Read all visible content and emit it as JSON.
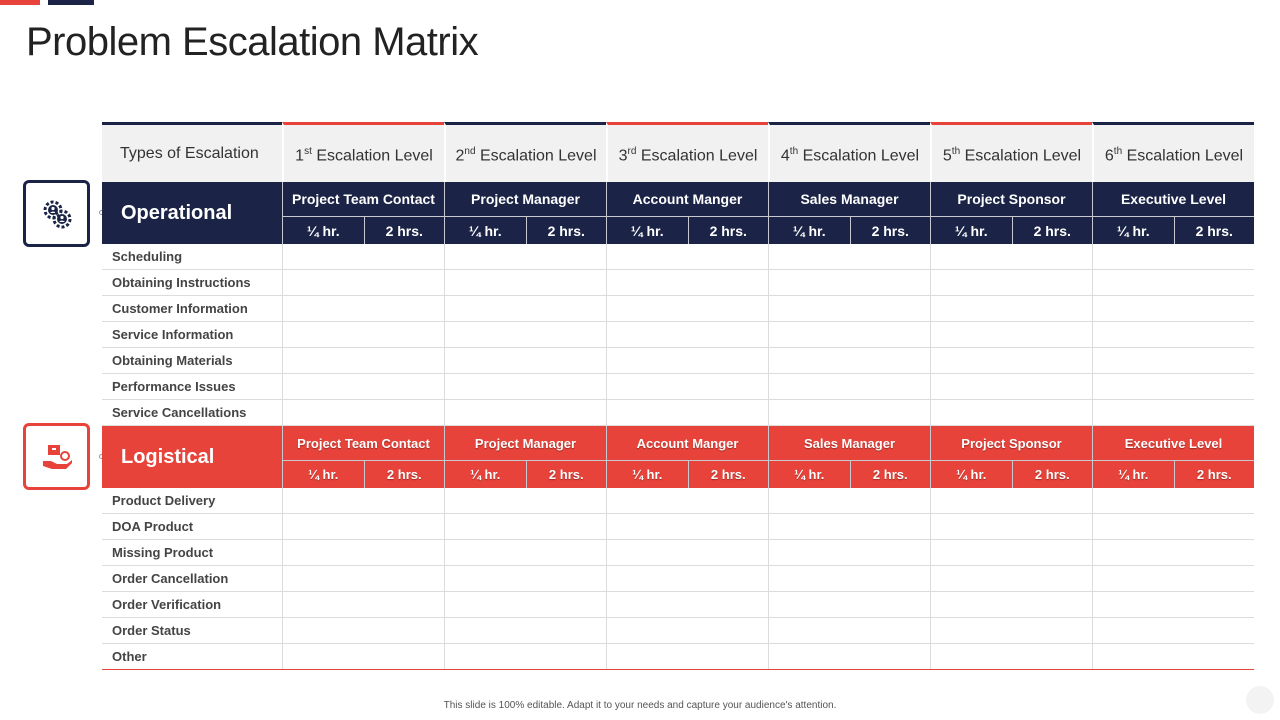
{
  "title": "Problem Escalation Matrix",
  "header": {
    "first": "Types of Escalation",
    "levels": [
      {
        "num": "1",
        "sup": "st",
        "text": "Escalation Level"
      },
      {
        "num": "2",
        "sup": "nd",
        "text": "Escalation Level"
      },
      {
        "num": "3",
        "sup": "rd",
        "text": "Escalation Level"
      },
      {
        "num": "4",
        "sup": "th",
        "text": "Escalation Level"
      },
      {
        "num": "5",
        "sup": "th",
        "text": "Escalation Level"
      },
      {
        "num": "6",
        "sup": "th",
        "text": "Escalation Level"
      }
    ]
  },
  "sections": [
    {
      "label": "Operational",
      "contacts": [
        "Project Team Contact",
        "Project Manager",
        "Account Manger",
        "Sales Manager",
        "Project Sponsor",
        "Executive Level"
      ],
      "times": [
        "¼ hr.",
        "2 hrs."
      ],
      "rows": [
        "Scheduling",
        "Obtaining Instructions",
        "Customer Information",
        "Service Information",
        "Obtaining Materials",
        "Performance Issues",
        "Service Cancellations"
      ]
    },
    {
      "label": "Logistical",
      "contacts": [
        "Project Team Contact",
        "Project Manager",
        "Account Manger",
        "Sales Manager",
        "Project Sponsor",
        "Executive Level"
      ],
      "times": [
        "¼ hr.",
        "2 hrs."
      ],
      "rows": [
        "Product Delivery",
        "DOA Product",
        "Missing Product",
        "Order Cancellation",
        "Order Verification",
        "Order Status",
        "Other"
      ]
    }
  ],
  "footer": "This slide is 100% editable. Adapt it to your needs and capture your audience's attention.",
  "colors": {
    "navy": "#1b2447",
    "red": "#e8433a"
  },
  "icons": {
    "operational": "gears-people-icon",
    "logistical": "delivery-hand-icon"
  }
}
